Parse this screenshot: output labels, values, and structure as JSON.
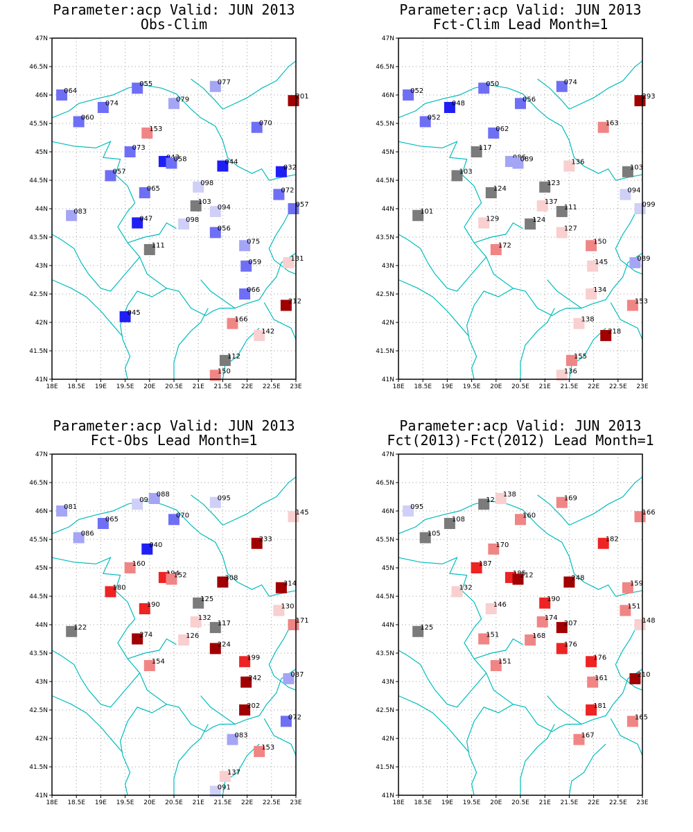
{
  "axes": {
    "lon_ticks": [
      "18E",
      "18.5E",
      "19E",
      "19.5E",
      "20E",
      "20.5E",
      "21E",
      "21.5E",
      "22E",
      "22.5E",
      "23E"
    ],
    "lat_ticks": [
      "47N",
      "46.5N",
      "46N",
      "45.5N",
      "45N",
      "44.5N",
      "44N",
      "43.5N",
      "43N",
      "42.5N",
      "42N",
      "41.5N",
      "41N"
    ],
    "lon_range": [
      18,
      23
    ],
    "lat_range": [
      41,
      47
    ]
  },
  "colors": {
    "coast": "#00bcbc",
    "grid": "#9a9a9a",
    "neutral": "#7b7b7b",
    "scale": {
      "below": [
        "#1f1ff5",
        "#6f6ff5",
        "#a5a5f5",
        "#cfcff8"
      ],
      "above": [
        "#f9cfcf",
        "#f08585",
        "#ee2323",
        "#a00000"
      ]
    }
  },
  "panels": [
    {
      "title": "Parameter:acp Valid: JUN 2013",
      "subtitle": "Obs-Clim",
      "points": [
        {
          "lon": 18.2,
          "lat": 46.0,
          "label": "064"
        },
        {
          "lon": 19.75,
          "lat": 46.12,
          "label": "055"
        },
        {
          "lon": 21.35,
          "lat": 46.15,
          "label": "077"
        },
        {
          "lon": 22.95,
          "lat": 45.9,
          "label": "201"
        },
        {
          "lon": 20.5,
          "lat": 45.85,
          "label": "079"
        },
        {
          "lon": 19.05,
          "lat": 45.78,
          "label": "074"
        },
        {
          "lon": 18.55,
          "lat": 45.53,
          "label": "060"
        },
        {
          "lon": 22.2,
          "lat": 45.43,
          "label": "070"
        },
        {
          "lon": 19.95,
          "lat": 45.33,
          "label": "153"
        },
        {
          "lon": 19.6,
          "lat": 45.0,
          "label": "073"
        },
        {
          "lon": 20.3,
          "lat": 44.83,
          "label": "043"
        },
        {
          "lon": 20.45,
          "lat": 44.8,
          "label": "058"
        },
        {
          "lon": 21.5,
          "lat": 44.75,
          "label": "044"
        },
        {
          "lon": 22.7,
          "lat": 44.65,
          "label": "032"
        },
        {
          "lon": 19.2,
          "lat": 44.58,
          "label": "057"
        },
        {
          "lon": 21.0,
          "lat": 44.38,
          "label": "098"
        },
        {
          "lon": 19.9,
          "lat": 44.28,
          "label": "065"
        },
        {
          "lon": 22.65,
          "lat": 44.25,
          "label": "072"
        },
        {
          "lon": 20.95,
          "lat": 44.05,
          "label": "103"
        },
        {
          "lon": 21.35,
          "lat": 43.95,
          "label": "094"
        },
        {
          "lon": 22.95,
          "lat": 44.0,
          "label": "057"
        },
        {
          "lon": 18.4,
          "lat": 43.88,
          "label": "083"
        },
        {
          "lon": 19.75,
          "lat": 43.75,
          "label": "047"
        },
        {
          "lon": 20.7,
          "lat": 43.73,
          "label": "098"
        },
        {
          "lon": 21.35,
          "lat": 43.58,
          "label": "056"
        },
        {
          "lon": 21.95,
          "lat": 43.35,
          "label": "075"
        },
        {
          "lon": 20.0,
          "lat": 43.28,
          "label": "111"
        },
        {
          "lon": 22.85,
          "lat": 43.05,
          "label": "131"
        },
        {
          "lon": 21.98,
          "lat": 42.99,
          "label": "059"
        },
        {
          "lon": 21.95,
          "lat": 42.5,
          "label": "066"
        },
        {
          "lon": 22.8,
          "lat": 42.3,
          "label": "212"
        },
        {
          "lon": 19.5,
          "lat": 42.1,
          "label": "045"
        },
        {
          "lon": 21.7,
          "lat": 41.98,
          "label": "166"
        },
        {
          "lon": 22.25,
          "lat": 41.77,
          "label": "142"
        },
        {
          "lon": 21.55,
          "lat": 41.33,
          "label": "112"
        },
        {
          "lon": 21.35,
          "lat": 41.07,
          "label": "150"
        }
      ]
    },
    {
      "title": "Parameter:acp Valid: JUN 2013",
      "subtitle": "Fct-Clim Lead Month=1",
      "points": [
        {
          "lon": 18.2,
          "lat": 46.0,
          "label": "052"
        },
        {
          "lon": 19.75,
          "lat": 46.12,
          "label": "050"
        },
        {
          "lon": 21.35,
          "lat": 46.15,
          "label": "074"
        },
        {
          "lon": 22.95,
          "lat": 45.9,
          "label": "293"
        },
        {
          "lon": 20.5,
          "lat": 45.85,
          "label": "056"
        },
        {
          "lon": 19.05,
          "lat": 45.78,
          "label": "048"
        },
        {
          "lon": 18.55,
          "lat": 45.53,
          "label": "052"
        },
        {
          "lon": 22.2,
          "lat": 45.43,
          "label": "163"
        },
        {
          "lon": 19.95,
          "lat": 45.33,
          "label": "062"
        },
        {
          "lon": 19.6,
          "lat": 45.0,
          "label": "117"
        },
        {
          "lon": 20.3,
          "lat": 44.83,
          "label": "086"
        },
        {
          "lon": 20.45,
          "lat": 44.8,
          "label": "089"
        },
        {
          "lon": 21.5,
          "lat": 44.75,
          "label": "136"
        },
        {
          "lon": 22.7,
          "lat": 44.65,
          "label": "103"
        },
        {
          "lon": 19.2,
          "lat": 44.58,
          "label": "103"
        },
        {
          "lon": 21.0,
          "lat": 44.38,
          "label": "123"
        },
        {
          "lon": 19.9,
          "lat": 44.28,
          "label": "124"
        },
        {
          "lon": 22.65,
          "lat": 44.25,
          "label": "094"
        },
        {
          "lon": 20.95,
          "lat": 44.05,
          "label": "137"
        },
        {
          "lon": 21.35,
          "lat": 43.95,
          "label": "111"
        },
        {
          "lon": 22.95,
          "lat": 44.0,
          "label": "099"
        },
        {
          "lon": 18.4,
          "lat": 43.88,
          "label": "101"
        },
        {
          "lon": 19.75,
          "lat": 43.75,
          "label": "129"
        },
        {
          "lon": 20.7,
          "lat": 43.73,
          "label": "124"
        },
        {
          "lon": 21.35,
          "lat": 43.58,
          "label": "127"
        },
        {
          "lon": 21.95,
          "lat": 43.35,
          "label": "150"
        },
        {
          "lon": 20.0,
          "lat": 43.28,
          "label": "172"
        },
        {
          "lon": 22.85,
          "lat": 43.05,
          "label": "089"
        },
        {
          "lon": 21.98,
          "lat": 42.99,
          "label": "145"
        },
        {
          "lon": 21.95,
          "lat": 42.5,
          "label": "134"
        },
        {
          "lon": 22.8,
          "lat": 42.3,
          "label": "153"
        },
        {
          "lon": 21.7,
          "lat": 41.98,
          "label": "138"
        },
        {
          "lon": 22.25,
          "lat": 41.77,
          "label": "218"
        },
        {
          "lon": 21.55,
          "lat": 41.33,
          "label": "155"
        },
        {
          "lon": 21.35,
          "lat": 41.07,
          "label": "136"
        }
      ]
    },
    {
      "title": "Parameter:acp Valid: JUN 2013",
      "subtitle": "Fct-Obs Lead Month=1",
      "points": [
        {
          "lon": 18.2,
          "lat": 46.0,
          "label": "081"
        },
        {
          "lon": 19.75,
          "lat": 46.12,
          "label": "090"
        },
        {
          "lon": 20.1,
          "lat": 46.22,
          "label": "088"
        },
        {
          "lon": 21.35,
          "lat": 46.15,
          "label": "095"
        },
        {
          "lon": 22.95,
          "lat": 45.9,
          "label": "145"
        },
        {
          "lon": 20.5,
          "lat": 45.85,
          "label": "070"
        },
        {
          "lon": 19.05,
          "lat": 45.78,
          "label": "065"
        },
        {
          "lon": 18.55,
          "lat": 45.53,
          "label": "086"
        },
        {
          "lon": 22.2,
          "lat": 45.43,
          "label": "233"
        },
        {
          "lon": 19.95,
          "lat": 45.33,
          "label": "040"
        },
        {
          "lon": 19.6,
          "lat": 45.0,
          "label": "160"
        },
        {
          "lon": 20.3,
          "lat": 44.83,
          "label": "194"
        },
        {
          "lon": 20.45,
          "lat": 44.8,
          "label": "152"
        },
        {
          "lon": 21.5,
          "lat": 44.75,
          "label": "308"
        },
        {
          "lon": 22.7,
          "lat": 44.65,
          "label": "314"
        },
        {
          "lon": 19.2,
          "lat": 44.58,
          "label": "180"
        },
        {
          "lon": 21.0,
          "lat": 44.38,
          "label": "125"
        },
        {
          "lon": 19.9,
          "lat": 44.28,
          "label": "190"
        },
        {
          "lon": 22.65,
          "lat": 44.25,
          "label": "130"
        },
        {
          "lon": 20.95,
          "lat": 44.05,
          "label": "132"
        },
        {
          "lon": 21.35,
          "lat": 43.95,
          "label": "117"
        },
        {
          "lon": 22.95,
          "lat": 44.0,
          "label": "171"
        },
        {
          "lon": 18.4,
          "lat": 43.88,
          "label": "122"
        },
        {
          "lon": 19.75,
          "lat": 43.75,
          "label": "274"
        },
        {
          "lon": 20.7,
          "lat": 43.73,
          "label": "126"
        },
        {
          "lon": 21.35,
          "lat": 43.58,
          "label": "224"
        },
        {
          "lon": 21.95,
          "lat": 43.35,
          "label": "199"
        },
        {
          "lon": 20.0,
          "lat": 43.28,
          "label": "154"
        },
        {
          "lon": 22.85,
          "lat": 43.05,
          "label": "087"
        },
        {
          "lon": 21.98,
          "lat": 42.99,
          "label": "242"
        },
        {
          "lon": 21.95,
          "lat": 42.5,
          "label": "202"
        },
        {
          "lon": 22.8,
          "lat": 42.3,
          "label": "072"
        },
        {
          "lon": 21.7,
          "lat": 41.98,
          "label": "083"
        },
        {
          "lon": 22.25,
          "lat": 41.77,
          "label": "153"
        },
        {
          "lon": 21.55,
          "lat": 41.33,
          "label": "137"
        },
        {
          "lon": 21.35,
          "lat": 41.07,
          "label": "091"
        }
      ]
    },
    {
      "title": "Parameter:acp Valid: JUN 2013",
      "subtitle": "Fct(2013)-Fct(2012) Lead Month=1",
      "points": [
        {
          "lon": 18.2,
          "lat": 46.0,
          "label": "095"
        },
        {
          "lon": 19.75,
          "lat": 46.12,
          "label": "125"
        },
        {
          "lon": 20.1,
          "lat": 46.22,
          "label": "138"
        },
        {
          "lon": 21.35,
          "lat": 46.15,
          "label": "169"
        },
        {
          "lon": 22.95,
          "lat": 45.9,
          "label": "166"
        },
        {
          "lon": 20.5,
          "lat": 45.85,
          "label": "160"
        },
        {
          "lon": 19.05,
          "lat": 45.78,
          "label": "108"
        },
        {
          "lon": 18.55,
          "lat": 45.53,
          "label": "105"
        },
        {
          "lon": 22.2,
          "lat": 45.43,
          "label": "182"
        },
        {
          "lon": 19.95,
          "lat": 45.33,
          "label": "170"
        },
        {
          "lon": 19.6,
          "lat": 45.0,
          "label": "187"
        },
        {
          "lon": 20.3,
          "lat": 44.83,
          "label": "185"
        },
        {
          "lon": 20.45,
          "lat": 44.8,
          "label": "212"
        },
        {
          "lon": 21.5,
          "lat": 44.75,
          "label": "248"
        },
        {
          "lon": 22.7,
          "lat": 44.65,
          "label": "159"
        },
        {
          "lon": 19.2,
          "lat": 44.58,
          "label": "132"
        },
        {
          "lon": 21.0,
          "lat": 44.38,
          "label": "190"
        },
        {
          "lon": 19.9,
          "lat": 44.28,
          "label": "146"
        },
        {
          "lon": 22.65,
          "lat": 44.25,
          "label": "151"
        },
        {
          "lon": 20.95,
          "lat": 44.05,
          "label": "174"
        },
        {
          "lon": 21.35,
          "lat": 43.95,
          "label": "207"
        },
        {
          "lon": 22.95,
          "lat": 44.0,
          "label": "148"
        },
        {
          "lon": 18.4,
          "lat": 43.88,
          "label": "125"
        },
        {
          "lon": 19.75,
          "lat": 43.75,
          "label": "151"
        },
        {
          "lon": 20.7,
          "lat": 43.73,
          "label": "168"
        },
        {
          "lon": 21.35,
          "lat": 43.58,
          "label": "176"
        },
        {
          "lon": 21.95,
          "lat": 43.35,
          "label": "176"
        },
        {
          "lon": 20.0,
          "lat": 43.28,
          "label": "151"
        },
        {
          "lon": 22.85,
          "lat": 43.05,
          "label": "210"
        },
        {
          "lon": 21.98,
          "lat": 42.99,
          "label": "161"
        },
        {
          "lon": 21.95,
          "lat": 42.5,
          "label": "181"
        },
        {
          "lon": 22.8,
          "lat": 42.3,
          "label": "165"
        },
        {
          "lon": 21.7,
          "lat": 41.98,
          "label": "167"
        }
      ]
    }
  ]
}
